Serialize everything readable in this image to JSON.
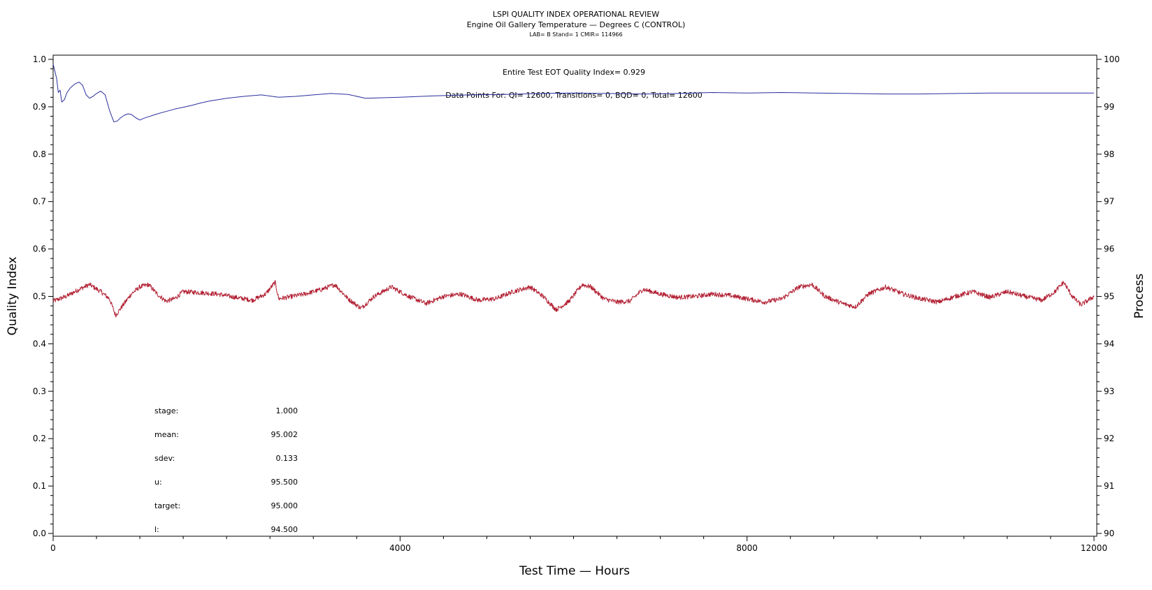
{
  "chart_data": {
    "type": "line",
    "title": "LSPI QUALITY INDEX OPERATIONAL REVIEW",
    "subtitle": "Engine Oil Gallery Temperature — Degrees C (CONTROL)",
    "subtitle2": "LAB= B Stand= 1 CMIR= 114966",
    "xlabel": "Test Time — Hours",
    "ylabel_left": "Quality Index",
    "ylabel_right": "Process",
    "xlim": [
      0,
      12000
    ],
    "ylim_left": [
      0.0,
      1.0
    ],
    "ylim_right": [
      90,
      100
    ],
    "x_ticks": [
      "0",
      "4000",
      "8000",
      "12000"
    ],
    "x_tick_values": [
      0,
      4000,
      8000,
      12000
    ],
    "y_left_ticks": [
      "0.0",
      "0.1",
      "0.2",
      "0.3",
      "0.4",
      "0.5",
      "0.6",
      "0.7",
      "0.8",
      "0.9",
      "1.0"
    ],
    "y_left_tick_values": [
      0.0,
      0.1,
      0.2,
      0.3,
      0.4,
      0.5,
      0.6,
      0.7,
      0.8,
      0.9,
      1.0
    ],
    "y_right_ticks": [
      "90",
      "91",
      "92",
      "93",
      "94",
      "95",
      "96",
      "97",
      "98",
      "99",
      "100"
    ],
    "y_right_tick_values": [
      90,
      91,
      92,
      93,
      94,
      95,
      96,
      97,
      98,
      99,
      100
    ],
    "grid": false,
    "annotations": [
      "Entire Test EOT Quality Index=  0.929",
      "Data Points For: QI= 12600, Transitions=     0, BQD=     0, Total= 12600"
    ],
    "stats": [
      {
        "label": "stage:",
        "value": "1.000"
      },
      {
        "label": "mean:",
        "value": "95.002"
      },
      {
        "label": "sdev:",
        "value": "0.133"
      },
      {
        "label": "u:",
        "value": "95.500"
      },
      {
        "label": "target:",
        "value": "95.000"
      },
      {
        "label": "l:",
        "value": "94.500"
      }
    ],
    "series": [
      {
        "axis": "left",
        "color": "#2b2f9e",
        "x": [
          0,
          20,
          40,
          60,
          80,
          100,
          130,
          160,
          200,
          250,
          300,
          340,
          380,
          420,
          460,
          500,
          550,
          600,
          650,
          700,
          740,
          780,
          820,
          860,
          900,
          950,
          1000,
          1050,
          1100,
          1150,
          1200,
          1300,
          1400,
          1500,
          1600,
          1700,
          1800,
          2000,
          2200,
          2400,
          2600,
          2800,
          3000,
          3200,
          3400,
          3600,
          3800,
          4000,
          4400,
          4800,
          5200,
          5600,
          6000,
          6400,
          6800,
          7200,
          7600,
          8000,
          8400,
          8800,
          9200,
          9600,
          10000,
          10400,
          10800,
          11200,
          11600,
          12000
        ],
        "y": [
          0.99,
          0.975,
          0.96,
          0.93,
          0.935,
          0.91,
          0.915,
          0.93,
          0.94,
          0.948,
          0.952,
          0.945,
          0.925,
          0.918,
          0.922,
          0.928,
          0.933,
          0.925,
          0.892,
          0.868,
          0.87,
          0.877,
          0.882,
          0.885,
          0.884,
          0.877,
          0.872,
          0.876,
          0.879,
          0.882,
          0.885,
          0.89,
          0.895,
          0.899,
          0.903,
          0.908,
          0.912,
          0.918,
          0.922,
          0.925,
          0.92,
          0.922,
          0.925,
          0.928,
          0.926,
          0.918,
          0.919,
          0.92,
          0.923,
          0.925,
          0.926,
          0.928,
          0.929,
          0.928,
          0.927,
          0.928,
          0.93,
          0.929,
          0.93,
          0.929,
          0.928,
          0.927,
          0.927,
          0.928,
          0.929,
          0.929,
          0.929,
          0.929
        ]
      },
      {
        "axis": "right",
        "color": "#b22033",
        "x": [
          0,
          150,
          300,
          420,
          550,
          650,
          720,
          800,
          900,
          1000,
          1100,
          1200,
          1300,
          1400,
          1500,
          1700,
          1900,
          2100,
          2300,
          2450,
          2560,
          2600,
          2700,
          2900,
          3100,
          3250,
          3400,
          3550,
          3700,
          3900,
          4100,
          4300,
          4500,
          4700,
          4900,
          5100,
          5300,
          5500,
          5650,
          5800,
          5950,
          6100,
          6200,
          6350,
          6500,
          6650,
          6800,
          7000,
          7200,
          7400,
          7600,
          7800,
          8000,
          8200,
          8400,
          8600,
          8750,
          8900,
          9100,
          9250,
          9400,
          9600,
          9800,
          10000,
          10200,
          10400,
          10600,
          10800,
          11000,
          11200,
          11400,
          11550,
          11650,
          11750,
          11850,
          12000
        ],
        "y": [
          94.9,
          95.0,
          95.15,
          95.25,
          95.1,
          94.95,
          94.6,
          94.8,
          95.05,
          95.2,
          95.25,
          95.05,
          94.9,
          94.95,
          95.1,
          95.08,
          95.05,
          94.98,
          94.92,
          95.05,
          95.3,
          94.95,
          94.98,
          95.05,
          95.15,
          95.25,
          94.95,
          94.75,
          95.0,
          95.2,
          95.0,
          94.85,
          95.0,
          95.05,
          94.92,
          94.95,
          95.1,
          95.2,
          95.0,
          94.72,
          94.9,
          95.25,
          95.2,
          94.95,
          94.88,
          94.9,
          95.15,
          95.05,
          94.98,
          95.0,
          95.05,
          95.02,
          94.95,
          94.88,
          94.95,
          95.2,
          95.25,
          95.0,
          94.85,
          94.78,
          95.05,
          95.2,
          95.05,
          94.95,
          94.88,
          95.0,
          95.1,
          94.98,
          95.1,
          95.0,
          94.92,
          95.1,
          95.3,
          95.0,
          94.82,
          95.0
        ]
      }
    ]
  }
}
